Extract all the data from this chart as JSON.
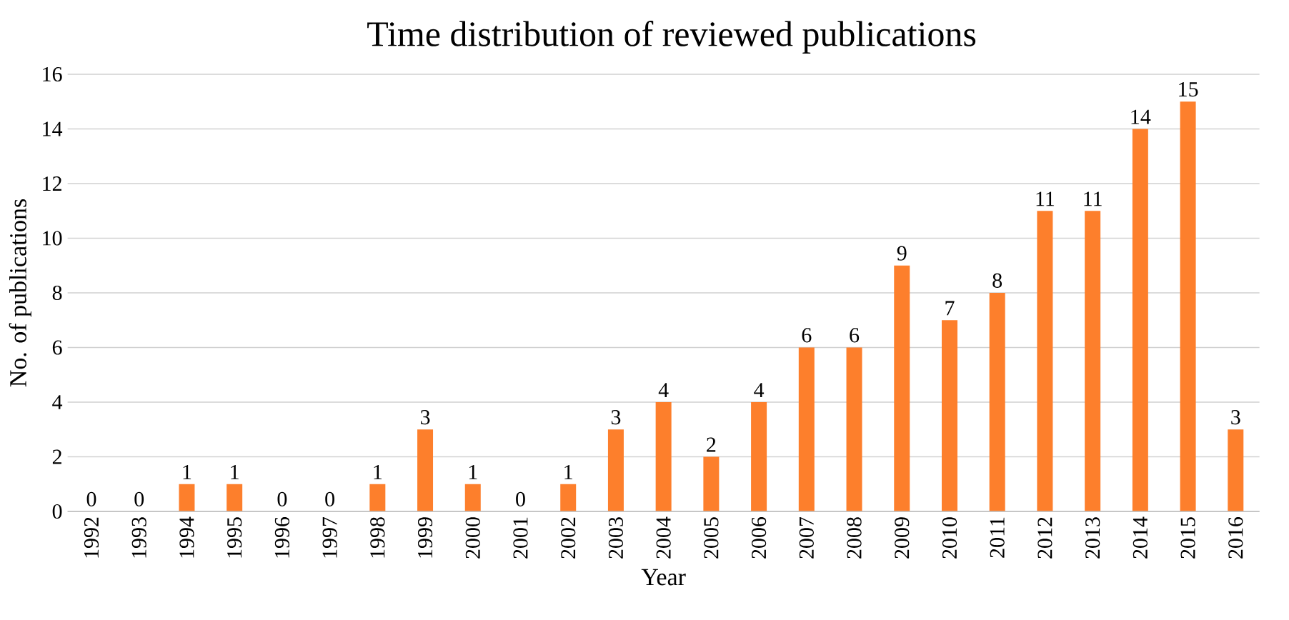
{
  "chart_data": {
    "type": "bar",
    "title": "Time distribution of reviewed publications",
    "xlabel": "Year",
    "ylabel": "No. of publications",
    "categories": [
      "1992",
      "1993",
      "1994",
      "1995",
      "1996",
      "1997",
      "1998",
      "1999",
      "2000",
      "2001",
      "2002",
      "2003",
      "2004",
      "2005",
      "2006",
      "2007",
      "2008",
      "2009",
      "2010",
      "2011",
      "2012",
      "2013",
      "2014",
      "2015",
      "2016"
    ],
    "values": [
      0,
      0,
      1,
      1,
      0,
      0,
      1,
      3,
      1,
      0,
      1,
      3,
      4,
      2,
      4,
      6,
      6,
      9,
      7,
      8,
      11,
      11,
      14,
      15,
      3
    ],
    "color": "#fd7f2c",
    "ylim": [
      0,
      16
    ],
    "yticks": [
      0,
      2,
      4,
      6,
      8,
      10,
      12,
      14,
      16
    ],
    "grid": "y",
    "data_labels": true
  }
}
